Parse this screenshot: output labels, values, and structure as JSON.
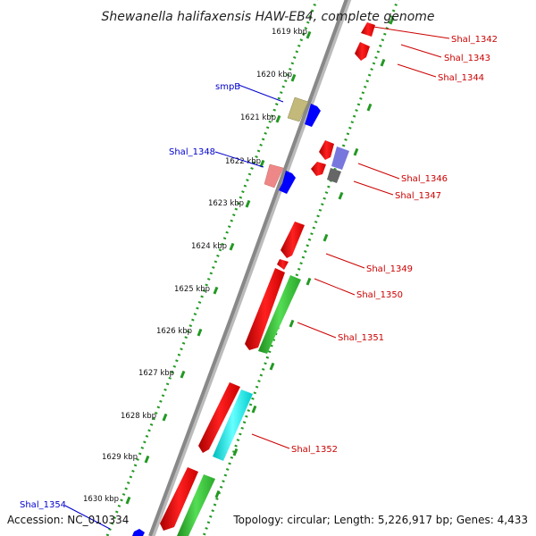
{
  "title": "Shewanella halifaxensis HAW-EB4, complete genome",
  "footer": {
    "accession": "Accession: NC_010334",
    "summary": "Topology: circular; Length: 5,226,917 bp; Genes: 4,433"
  },
  "ticks": [
    "1619 kbp",
    "1620 kbp",
    "1621 kbp",
    "1622 kbp",
    "1623 kbp",
    "1624 kbp",
    "1625 kbp",
    "1626 kbp",
    "1627 kbp",
    "1628 kbp",
    "1629 kbp",
    "1630 kbp"
  ],
  "genes": {
    "forward": [
      {
        "label": "smpB",
        "color": "#0000cc"
      },
      {
        "label": "Shal_1348",
        "color": "#0000cc"
      },
      {
        "label": "Shal_1354",
        "color": "#0000cc"
      }
    ],
    "reverse": [
      {
        "label": "Shal_1342",
        "color": "#cc0000"
      },
      {
        "label": "Shal_1343",
        "color": "#cc0000"
      },
      {
        "label": "Shal_1344",
        "color": "#cc0000"
      },
      {
        "label": "Shal_1346",
        "color": "#cc0000"
      },
      {
        "label": "Shal_1347",
        "color": "#cc0000"
      },
      {
        "label": "Shal_1349",
        "color": "#cc0000"
      },
      {
        "label": "Shal_1350",
        "color": "#cc0000"
      },
      {
        "label": "Shal_1351",
        "color": "#cc0000"
      },
      {
        "label": "Shal_1352",
        "color": "#cc0000"
      }
    ]
  },
  "colors": {
    "cds_red": "#ff0000",
    "cds_blue": "#0000ff",
    "cds_green": "#33cc33",
    "cds_cyan": "#00ffff",
    "cds_olive": "#c2b97a",
    "cds_pink": "#ee8888",
    "cds_purple": "#7777dd",
    "cds_gray": "#666666",
    "backbone": "#888888",
    "dotted_track": "#229922"
  }
}
